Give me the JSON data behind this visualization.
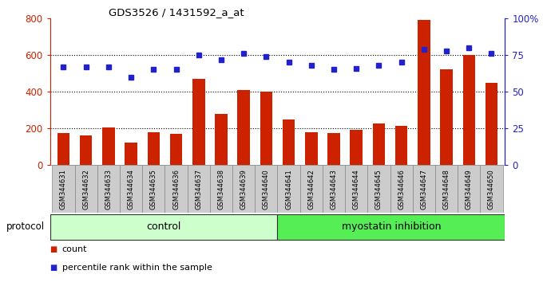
{
  "title": "GDS3526 / 1431592_a_at",
  "samples": [
    "GSM344631",
    "GSM344632",
    "GSM344633",
    "GSM344634",
    "GSM344635",
    "GSM344636",
    "GSM344637",
    "GSM344638",
    "GSM344639",
    "GSM344640",
    "GSM344641",
    "GSM344642",
    "GSM344643",
    "GSM344644",
    "GSM344645",
    "GSM344646",
    "GSM344647",
    "GSM344648",
    "GSM344649",
    "GSM344650"
  ],
  "counts": [
    175,
    163,
    205,
    120,
    178,
    168,
    470,
    280,
    410,
    400,
    250,
    180,
    173,
    193,
    228,
    213,
    790,
    520,
    600,
    448
  ],
  "percentiles": [
    67,
    67,
    67,
    60,
    65,
    65,
    75,
    72,
    76,
    74,
    70,
    68,
    65,
    66,
    68,
    70,
    79,
    78,
    80,
    76
  ],
  "control_count": 10,
  "bar_color": "#cc2200",
  "dot_color": "#2222cc",
  "control_bg": "#ccffcc",
  "myostatin_bg": "#55ee55",
  "xtick_bg": "#cccccc",
  "left_ylim": [
    0,
    800
  ],
  "right_ylim": [
    0,
    100
  ],
  "left_yticks": [
    0,
    200,
    400,
    600,
    800
  ],
  "right_yticks": [
    0,
    25,
    50,
    75,
    100
  ],
  "right_yticklabels": [
    "0",
    "25",
    "50",
    "75",
    "100%"
  ],
  "grid_values": [
    200,
    400,
    600
  ],
  "background_color": "#ffffff"
}
